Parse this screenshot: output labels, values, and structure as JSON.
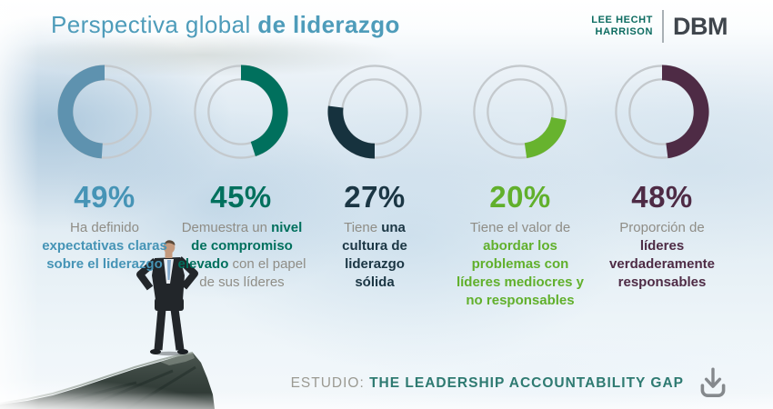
{
  "header": {
    "title_regular": "Perspectiva global ",
    "title_bold": "de liderazgo",
    "title_color": "#4e9cba",
    "logo": {
      "line1": "LEE HECHT",
      "line2": "HARRISON",
      "brand": "DBM",
      "lhh_color": "#0c6b60",
      "brand_color": "#3f454c"
    }
  },
  "chart_data": {
    "type": "pie",
    "note": "five donut gauges, percent of ring filled",
    "categories": [
      "expectativas claras",
      "compromiso elevado",
      "cultura de liderazgo",
      "abordar problemas",
      "lideres responsables"
    ],
    "values": [
      49,
      45,
      27,
      20,
      48
    ],
    "colors": [
      "#5e92af",
      "#00705d",
      "#16323e",
      "#67b32e",
      "#4e2b45"
    ],
    "track_color": "#c4c9cd"
  },
  "cards": [
    {
      "pct": "49%",
      "value": 49,
      "arc_start": 0,
      "arc_dir": "ccw",
      "color": "#4694b6",
      "arc_color": "#5e92af",
      "desc_prefix": "Ha definido ",
      "desc_bold": "expectativas claras sobre el liderazgo",
      "desc_suffix": ""
    },
    {
      "pct": "45%",
      "value": 45,
      "arc_start": 0,
      "arc_dir": "cw",
      "color": "#00705d",
      "arc_color": "#00705d",
      "desc_prefix": "Demuestra un ",
      "desc_bold": "nivel de compromiso elevado",
      "desc_suffix": " con el papel de sus líderes"
    },
    {
      "pct": "27%",
      "value": 27,
      "arc_start": 180,
      "arc_dir": "cw",
      "color": "#1b3644",
      "arc_color": "#16323e",
      "desc_prefix": "Tiene ",
      "desc_bold": "una cultura de liderazgo sólida",
      "desc_suffix": ""
    },
    {
      "pct": "20%",
      "value": 20,
      "arc_start": 100,
      "arc_dir": "cw",
      "color": "#61b02c",
      "arc_color": "#67b32e",
      "desc_prefix": "Tiene el valor de ",
      "desc_bold": "abordar los problemas con líderes mediocres y no responsables",
      "desc_suffix": ""
    },
    {
      "pct": "48%",
      "value": 48,
      "arc_start": 0,
      "arc_dir": "cw",
      "color": "#4e2b45",
      "arc_color": "#4e2b45",
      "desc_prefix": "Proporción de ",
      "desc_bold": "líderes verdaderamente responsables",
      "desc_suffix": ""
    }
  ],
  "footer": {
    "label": "ESTUDIO: ",
    "study": "THE LEADERSHIP ACCOUNTABILITY GAP",
    "study_color": "#2e7a71",
    "download_icon": "download-icon",
    "icon_color": "#85898d"
  }
}
